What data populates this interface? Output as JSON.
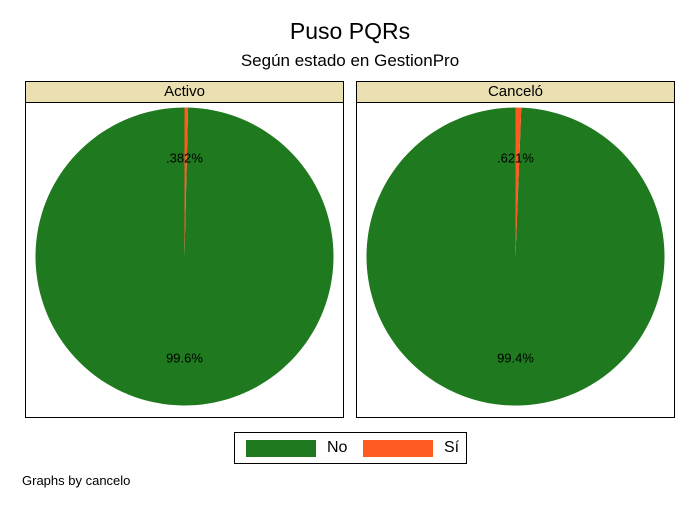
{
  "colors": {
    "no": "#1f7a1f",
    "si": "#ff5a1f",
    "header_bg": "#eadfb0"
  },
  "chart_data": {
    "type": "pie",
    "title": "Puso PQRs",
    "subtitle": "Según estado en GestionPro",
    "categories": [
      "No",
      "Sí"
    ],
    "panels": [
      {
        "name": "Activo",
        "values": [
          99.618,
          0.382
        ],
        "labels": [
          "99.6%",
          ".382%"
        ]
      },
      {
        "name": "Canceló",
        "values": [
          99.379,
          0.621
        ],
        "labels": [
          "99.4%",
          ".621%"
        ]
      }
    ],
    "legend": {
      "position": "bottom",
      "items": [
        "No",
        "Sí"
      ]
    },
    "note": "Graphs by cancelo"
  }
}
